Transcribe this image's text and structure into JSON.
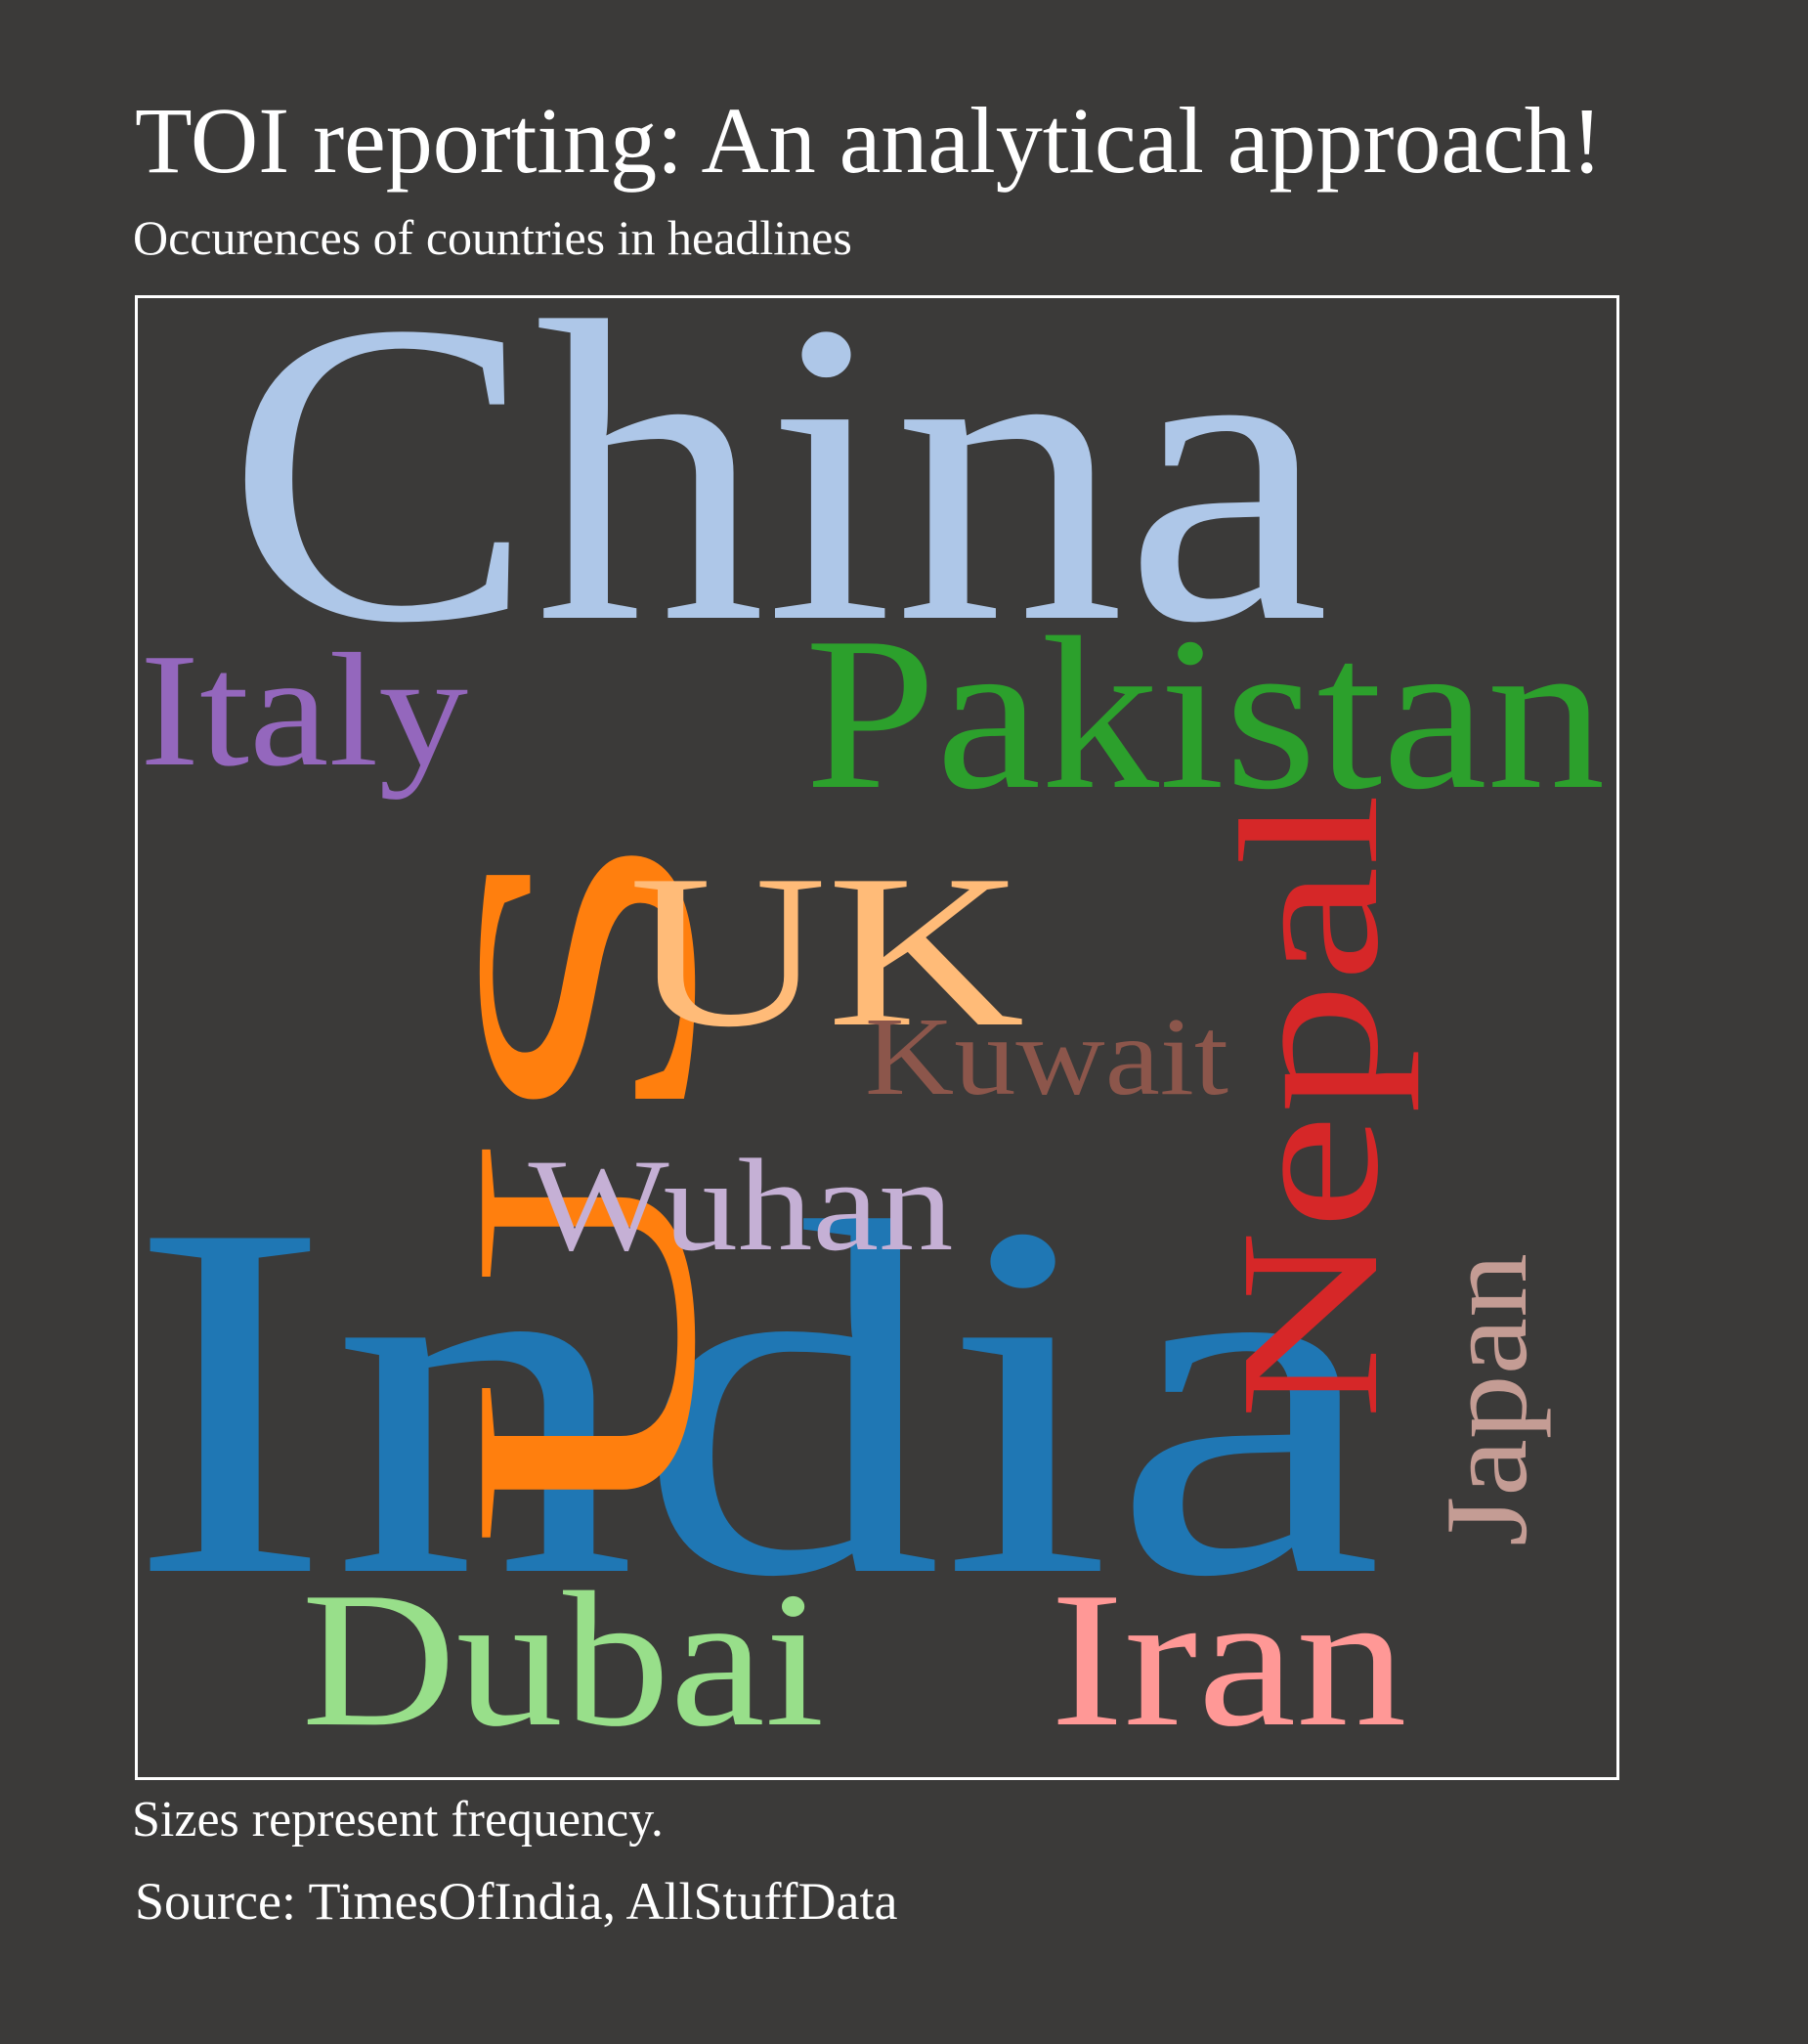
{
  "title": "TOI reporting: An analytical approach!",
  "subtitle": "Occurences of countries in headlines",
  "footer_note": "Sizes represent frequency.",
  "source": "Source: TimesOfIndia, AllStuffData",
  "chart_data": {
    "type": "wordcloud",
    "title": "TOI reporting: An analytical approach!",
    "subtitle": "Occurences of countries in headlines",
    "encoding": "Sizes represent frequency.",
    "words": [
      {
        "text": "India",
        "relative_size": 1.0,
        "color": "#1f77b4",
        "orientation": "horizontal"
      },
      {
        "text": "China",
        "relative_size": 0.85,
        "color": "#aec7e8",
        "orientation": "horizontal"
      },
      {
        "text": "US",
        "relative_size": 0.63,
        "color": "#ff7f0e",
        "orientation": "vertical"
      },
      {
        "text": "Pakistan",
        "relative_size": 0.43,
        "color": "#2ca02c",
        "orientation": "horizontal"
      },
      {
        "text": "UK",
        "relative_size": 0.43,
        "color": "#ffbb78",
        "orientation": "horizontal"
      },
      {
        "text": "Nepal",
        "relative_size": 0.39,
        "color": "#d62728",
        "orientation": "vertical"
      },
      {
        "text": "Dubai",
        "relative_size": 0.38,
        "color": "#98df8a",
        "orientation": "horizontal"
      },
      {
        "text": "Iran",
        "relative_size": 0.38,
        "color": "#ff9896",
        "orientation": "horizontal"
      },
      {
        "text": "Italy",
        "relative_size": 0.32,
        "color": "#9467bd",
        "orientation": "horizontal"
      },
      {
        "text": "Wuhan",
        "relative_size": 0.26,
        "color": "#c5b0d5",
        "orientation": "horizontal"
      },
      {
        "text": "Japan",
        "relative_size": 0.23,
        "color": "#c49c94",
        "orientation": "vertical"
      },
      {
        "text": "Kuwait",
        "relative_size": 0.22,
        "color": "#8c564b",
        "orientation": "horizontal"
      }
    ]
  }
}
